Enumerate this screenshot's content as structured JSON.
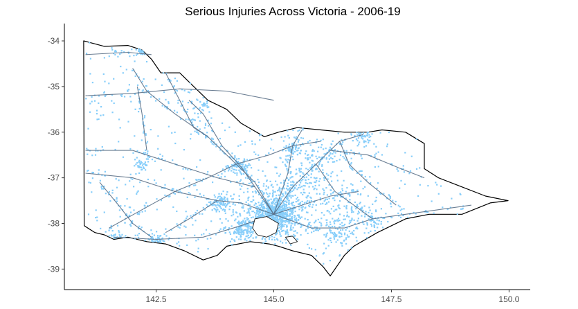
{
  "chart_data": {
    "type": "map",
    "title": "Serious Injuries Across Victoria - 2006-19",
    "xlabel": "",
    "ylabel": "",
    "x_ticks": [
      "142.5",
      "145.0",
      "147.5",
      "150.0"
    ],
    "x_tick_values": [
      142.5,
      145.0,
      147.5,
      150.0
    ],
    "y_ticks": [
      "-34",
      "-35",
      "-36",
      "-37",
      "-38",
      "-39"
    ],
    "y_tick_values": [
      -34,
      -35,
      -36,
      -37,
      -38,
      -39
    ],
    "xlim": [
      140.55,
      150.45
    ],
    "ylim": [
      -39.45,
      -33.62
    ],
    "grid": false,
    "layers": [
      "state boundary",
      "road network",
      "injury locations"
    ],
    "colors": {
      "points": "#87cefa",
      "roads": "#5a6f86",
      "boundary": "#000000"
    },
    "boundary": [
      [
        140.96,
        -34.0
      ],
      [
        141.4,
        -34.12
      ],
      [
        141.9,
        -34.1
      ],
      [
        142.2,
        -34.2
      ],
      [
        142.4,
        -34.4
      ],
      [
        142.6,
        -34.7
      ],
      [
        143.0,
        -34.7
      ],
      [
        143.3,
        -35.0
      ],
      [
        143.6,
        -35.3
      ],
      [
        144.0,
        -35.5
      ],
      [
        144.3,
        -35.8
      ],
      [
        144.8,
        -36.1
      ],
      [
        145.1,
        -36.0
      ],
      [
        145.5,
        -35.9
      ],
      [
        146.0,
        -35.95
      ],
      [
        146.5,
        -36.0
      ],
      [
        147.0,
        -36.0
      ],
      [
        147.3,
        -35.95
      ],
      [
        147.8,
        -36.0
      ],
      [
        148.2,
        -36.25
      ],
      [
        148.2,
        -36.8
      ],
      [
        148.5,
        -37.0
      ],
      [
        149.0,
        -37.2
      ],
      [
        149.5,
        -37.4
      ],
      [
        149.98,
        -37.5
      ],
      [
        149.6,
        -37.55
      ],
      [
        149.0,
        -37.8
      ],
      [
        148.3,
        -37.8
      ],
      [
        147.8,
        -37.9
      ],
      [
        147.2,
        -38.2
      ],
      [
        146.7,
        -38.5
      ],
      [
        146.5,
        -38.7
      ],
      [
        146.3,
        -39.0
      ],
      [
        146.2,
        -39.15
      ],
      [
        146.05,
        -38.95
      ],
      [
        145.8,
        -38.7
      ],
      [
        145.4,
        -38.6
      ],
      [
        145.1,
        -38.5
      ],
      [
        144.9,
        -38.45
      ],
      [
        144.5,
        -38.4
      ],
      [
        144.0,
        -38.5
      ],
      [
        143.8,
        -38.7
      ],
      [
        143.5,
        -38.8
      ],
      [
        143.1,
        -38.6
      ],
      [
        142.7,
        -38.45
      ],
      [
        142.3,
        -38.4
      ],
      [
        141.9,
        -38.3
      ],
      [
        141.6,
        -38.35
      ],
      [
        141.4,
        -38.25
      ],
      [
        141.2,
        -38.2
      ],
      [
        140.97,
        -38.05
      ]
    ],
    "roads": [
      [
        [
          141.0,
          -35.2
        ],
        [
          142.0,
          -35.15
        ],
        [
          143.0,
          -35.05
        ],
        [
          144.0,
          -35.1
        ],
        [
          145.0,
          -35.3
        ]
      ],
      [
        [
          141.0,
          -34.3
        ],
        [
          141.9,
          -34.25
        ],
        [
          142.4,
          -34.3
        ]
      ],
      [
        [
          145.0,
          -37.8
        ],
        [
          144.6,
          -37.1
        ],
        [
          144.2,
          -36.7
        ],
        [
          143.6,
          -36.1
        ],
        [
          142.9,
          -35.6
        ],
        [
          142.3,
          -35.1
        ],
        [
          142.0,
          -34.6
        ]
      ],
      [
        [
          145.0,
          -37.8
        ],
        [
          144.3,
          -37.55
        ],
        [
          143.8,
          -37.5
        ],
        [
          142.9,
          -37.3
        ],
        [
          142.0,
          -37.0
        ],
        [
          141.0,
          -36.9
        ]
      ],
      [
        [
          145.0,
          -37.8
        ],
        [
          144.3,
          -38.05
        ],
        [
          143.5,
          -38.3
        ],
        [
          142.5,
          -38.35
        ],
        [
          141.6,
          -38.3
        ]
      ],
      [
        [
          145.0,
          -37.8
        ],
        [
          145.4,
          -37.2
        ],
        [
          145.9,
          -36.7
        ],
        [
          146.4,
          -36.2
        ],
        [
          146.9,
          -36.05
        ]
      ],
      [
        [
          145.0,
          -37.8
        ],
        [
          145.8,
          -38.1
        ],
        [
          146.5,
          -38.1
        ],
        [
          147.1,
          -37.9
        ],
        [
          147.8,
          -37.8
        ],
        [
          148.5,
          -37.7
        ],
        [
          149.2,
          -37.6
        ]
      ],
      [
        [
          145.0,
          -37.8
        ],
        [
          145.3,
          -36.9
        ],
        [
          145.4,
          -36.3
        ],
        [
          145.6,
          -35.95
        ]
      ],
      [
        [
          145.0,
          -37.8
        ],
        [
          144.3,
          -36.75
        ],
        [
          143.9,
          -36.3
        ],
        [
          143.5,
          -35.6
        ],
        [
          143.2,
          -35.3
        ]
      ],
      [
        [
          144.2,
          -36.7
        ],
        [
          143.6,
          -37.0
        ],
        [
          142.9,
          -37.3
        ],
        [
          142.2,
          -37.7
        ],
        [
          141.5,
          -38.1
        ]
      ],
      [
        [
          141.0,
          -36.4
        ],
        [
          142.0,
          -36.4
        ],
        [
          142.9,
          -36.7
        ],
        [
          143.8,
          -37.0
        ],
        [
          144.6,
          -37.2
        ]
      ],
      [
        [
          142.3,
          -36.4
        ],
        [
          142.2,
          -35.6
        ],
        [
          142.1,
          -35.0
        ]
      ],
      [
        [
          146.4,
          -36.2
        ],
        [
          146.6,
          -36.7
        ],
        [
          147.0,
          -37.1
        ],
        [
          147.6,
          -37.6
        ]
      ],
      [
        [
          145.9,
          -36.7
        ],
        [
          146.3,
          -37.3
        ],
        [
          146.7,
          -37.6
        ],
        [
          147.1,
          -37.9
        ]
      ],
      [
        [
          144.2,
          -36.7
        ],
        [
          144.9,
          -36.5
        ],
        [
          145.4,
          -36.3
        ],
        [
          146.0,
          -36.2
        ]
      ],
      [
        [
          146.2,
          -36.4
        ],
        [
          147.0,
          -36.5
        ],
        [
          147.7,
          -36.8
        ],
        [
          148.2,
          -37.0
        ]
      ],
      [
        [
          141.3,
          -37.1
        ],
        [
          141.7,
          -37.6
        ],
        [
          142.0,
          -38.0
        ],
        [
          142.4,
          -38.3
        ]
      ],
      [
        [
          143.8,
          -37.5
        ],
        [
          143.2,
          -37.9
        ],
        [
          142.7,
          -38.2
        ]
      ],
      [
        [
          145.0,
          -37.8
        ],
        [
          145.6,
          -37.6
        ],
        [
          146.2,
          -37.4
        ],
        [
          146.8,
          -37.3
        ]
      ],
      [
        [
          142.7,
          -34.7
        ],
        [
          143.0,
          -35.3
        ],
        [
          143.3,
          -35.9
        ],
        [
          143.6,
          -36.1
        ]
      ]
    ],
    "port_phillip_bay": [
      [
        144.6,
        -37.9
      ],
      [
        144.85,
        -37.85
      ],
      [
        145.1,
        -38.0
      ],
      [
        145.05,
        -38.2
      ],
      [
        144.85,
        -38.3
      ],
      [
        144.65,
        -38.25
      ],
      [
        144.55,
        -38.1
      ]
    ],
    "western_port": [
      [
        145.25,
        -38.3
      ],
      [
        145.4,
        -38.28
      ],
      [
        145.5,
        -38.4
      ],
      [
        145.35,
        -38.45
      ]
    ],
    "clusters": [
      {
        "lon": 145.0,
        "lat": -37.8,
        "sd": 0.18,
        "n": 420
      },
      {
        "lon": 145.0,
        "lat": -37.8,
        "sd": 0.45,
        "n": 600
      },
      {
        "lon": 144.35,
        "lat": -38.15,
        "sd": 0.12,
        "n": 90
      },
      {
        "lon": 143.85,
        "lat": -37.56,
        "sd": 0.12,
        "n": 80
      },
      {
        "lon": 144.28,
        "lat": -36.76,
        "sd": 0.12,
        "n": 80
      },
      {
        "lon": 145.4,
        "lat": -36.38,
        "sd": 0.12,
        "n": 60
      },
      {
        "lon": 146.9,
        "lat": -36.1,
        "sd": 0.1,
        "n": 50
      },
      {
        "lon": 146.4,
        "lat": -38.2,
        "sd": 0.2,
        "n": 90
      },
      {
        "lon": 147.1,
        "lat": -38.0,
        "sd": 0.15,
        "n": 50
      },
      {
        "lon": 142.2,
        "lat": -34.2,
        "sd": 0.06,
        "n": 45
      },
      {
        "lon": 141.6,
        "lat": -38.34,
        "sd": 0.1,
        "n": 40
      },
      {
        "lon": 142.48,
        "lat": -38.35,
        "sd": 0.1,
        "n": 40
      },
      {
        "lon": 142.2,
        "lat": -36.7,
        "sd": 0.1,
        "n": 35
      },
      {
        "lon": 143.55,
        "lat": -35.35,
        "sd": 0.08,
        "n": 25
      },
      {
        "lon": 146.0,
        "lat": -36.5,
        "sd": 0.2,
        "n": 60
      },
      {
        "lon": 145.6,
        "lat": -37.0,
        "sd": 0.3,
        "n": 120
      },
      {
        "lon": 146.5,
        "lat": -37.6,
        "sd": 0.3,
        "n": 90
      }
    ],
    "background_points": 950,
    "roadside_points": 700,
    "point_size": 2.2
  }
}
